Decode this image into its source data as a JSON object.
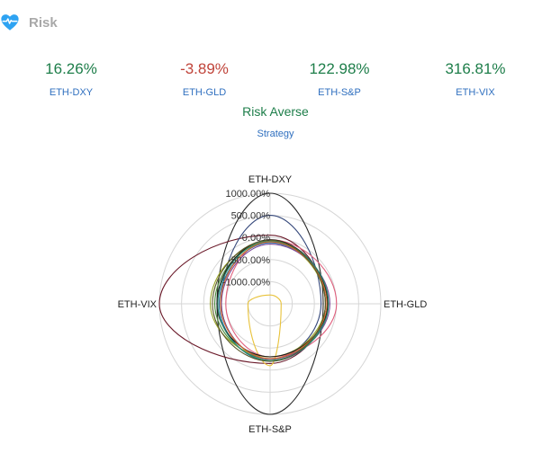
{
  "header": {
    "title": "Risk",
    "icon": "heart-pulse-icon",
    "icon_color": "#2ea3f2"
  },
  "metrics": [
    {
      "value": "16.26%",
      "label": "ETH-DXY",
      "sign": "pos"
    },
    {
      "value": "-3.89%",
      "label": "ETH-GLD",
      "sign": "neg"
    },
    {
      "value": "122.98%",
      "label": "ETH-S&P",
      "sign": "pos"
    },
    {
      "value": "316.81%",
      "label": "ETH-VIX",
      "sign": "pos"
    }
  ],
  "strategy": {
    "value": "Risk Averse",
    "label": "Strategy"
  },
  "chart_data": {
    "type": "radar",
    "axes": [
      "ETH-DXY",
      "ETH-GLD",
      "ETH-S&P",
      "ETH-VIX"
    ],
    "radial_ticks": [
      "1000.00%",
      "500.00%",
      "0.00%",
      "-500.00%",
      "-1000.00%"
    ],
    "range": [
      -1500,
      1000
    ],
    "series": [
      {
        "color": "#2a2a2a",
        "values": [
          1000,
          -300,
          1000,
          -300
        ]
      },
      {
        "color": "#6b1a2a",
        "values": [
          50,
          -250,
          -150,
          1000
        ]
      },
      {
        "color": "#34477a",
        "values": [
          500,
          -350,
          -250,
          -400
        ]
      },
      {
        "color": "#e8c23a",
        "values": [
          -1300,
          -1250,
          -100,
          -1000
        ]
      },
      {
        "color": "#e0607e",
        "values": [
          -50,
          0,
          -300,
          -500
        ]
      },
      {
        "color": "#4a8a3a",
        "values": [
          -100,
          -200,
          -250,
          -250
        ]
      },
      {
        "color": "#9aa52a",
        "values": [
          -100,
          -250,
          -300,
          -150
        ]
      },
      {
        "color": "#2a6fa8",
        "values": [
          -120,
          -200,
          -200,
          -350
        ]
      },
      {
        "color": "#7a4a9a",
        "values": [
          -150,
          -150,
          -250,
          -400
        ]
      },
      {
        "color": "#1a1a1a",
        "values": [
          -50,
          -200,
          -300,
          -300
        ]
      },
      {
        "color": "#2a8a6a",
        "values": [
          -80,
          -180,
          -220,
          -320
        ]
      },
      {
        "color": "#d26a2a",
        "values": [
          -100,
          -220,
          -260,
          -380
        ]
      },
      {
        "color": "#5a5a2a",
        "values": [
          -60,
          -250,
          -200,
          -200
        ]
      }
    ]
  }
}
